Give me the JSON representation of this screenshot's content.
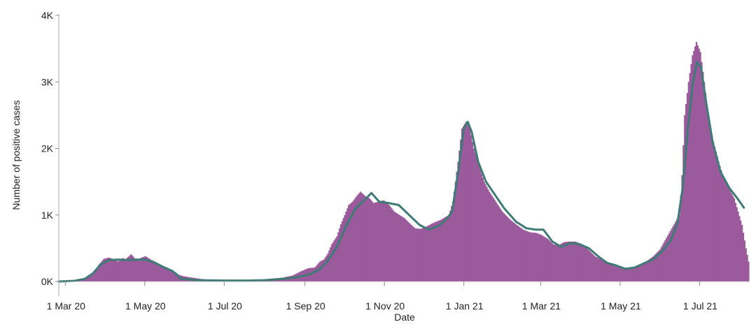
{
  "chart_data": {
    "type": "bar",
    "title": "",
    "xlabel": "Date",
    "ylabel": "Number of positive cases",
    "x_start": "2020-02-25",
    "x_end": "2021-08-09",
    "ylim": [
      0,
      4000
    ],
    "y_ticks": [
      {
        "value": 0,
        "label": "0K"
      },
      {
        "value": 1000,
        "label": "1K"
      },
      {
        "value": 2000,
        "label": "2K"
      },
      {
        "value": 3000,
        "label": "3K"
      },
      {
        "value": 4000,
        "label": "4K"
      }
    ],
    "x_ticks": [
      {
        "date": "2020-03-01",
        "label": "1 Mar 20"
      },
      {
        "date": "2020-05-01",
        "label": "1 May 20"
      },
      {
        "date": "2020-07-01",
        "label": "1 Jul 20"
      },
      {
        "date": "2020-09-01",
        "label": "1 Sep 20"
      },
      {
        "date": "2020-11-01",
        "label": "1 Nov 20"
      },
      {
        "date": "2021-01-01",
        "label": "1 Jan 21"
      },
      {
        "date": "2021-03-01",
        "label": "1 Mar 21"
      },
      {
        "date": "2021-05-01",
        "label": "1 May 21"
      },
      {
        "date": "2021-07-01",
        "label": "1 Jul 21"
      }
    ],
    "bar_color": "#9b5a9b",
    "line_color": "#3e7b76",
    "grid": false,
    "series": [
      {
        "type": "bar",
        "points": [
          [
            "2020-02-25",
            0
          ],
          [
            "2020-03-10",
            10
          ],
          [
            "2020-03-15",
            40
          ],
          [
            "2020-03-20",
            90
          ],
          [
            "2020-03-23",
            150
          ],
          [
            "2020-03-26",
            250
          ],
          [
            "2020-03-30",
            340
          ],
          [
            "2020-04-03",
            360
          ],
          [
            "2020-04-07",
            330
          ],
          [
            "2020-04-10",
            300
          ],
          [
            "2020-04-13",
            350
          ],
          [
            "2020-04-16",
            340
          ],
          [
            "2020-04-20",
            410
          ],
          [
            "2020-04-24",
            320
          ],
          [
            "2020-04-28",
            360
          ],
          [
            "2020-05-01",
            380
          ],
          [
            "2020-05-05",
            330
          ],
          [
            "2020-05-08",
            300
          ],
          [
            "2020-05-12",
            250
          ],
          [
            "2020-05-16",
            220
          ],
          [
            "2020-05-20",
            160
          ],
          [
            "2020-05-25",
            110
          ],
          [
            "2020-05-30",
            80
          ],
          [
            "2020-06-05",
            60
          ],
          [
            "2020-06-12",
            40
          ],
          [
            "2020-06-20",
            25
          ],
          [
            "2020-07-01",
            15
          ],
          [
            "2020-07-15",
            15
          ],
          [
            "2020-07-25",
            25
          ],
          [
            "2020-08-05",
            40
          ],
          [
            "2020-08-15",
            60
          ],
          [
            "2020-08-22",
            90
          ],
          [
            "2020-08-28",
            150
          ],
          [
            "2020-09-03",
            200
          ],
          [
            "2020-09-08",
            210
          ],
          [
            "2020-09-12",
            300
          ],
          [
            "2020-09-15",
            330
          ],
          [
            "2020-09-18",
            420
          ],
          [
            "2020-09-21",
            560
          ],
          [
            "2020-09-25",
            680
          ],
          [
            "2020-09-28",
            860
          ],
          [
            "2020-10-01",
            1000
          ],
          [
            "2020-10-04",
            1150
          ],
          [
            "2020-10-07",
            1200
          ],
          [
            "2020-10-10",
            1280
          ],
          [
            "2020-10-13",
            1350
          ],
          [
            "2020-10-17",
            1280
          ],
          [
            "2020-10-20",
            1250
          ],
          [
            "2020-10-23",
            1180
          ],
          [
            "2020-10-27",
            1200
          ],
          [
            "2020-10-31",
            1220
          ],
          [
            "2020-11-04",
            1150
          ],
          [
            "2020-11-08",
            1050
          ],
          [
            "2020-11-12",
            1000
          ],
          [
            "2020-11-16",
            950
          ],
          [
            "2020-11-20",
            870
          ],
          [
            "2020-11-24",
            800
          ],
          [
            "2020-11-28",
            790
          ],
          [
            "2020-12-02",
            820
          ],
          [
            "2020-12-08",
            880
          ],
          [
            "2020-12-14",
            930
          ],
          [
            "2020-12-20",
            1000
          ],
          [
            "2020-12-23",
            1200
          ],
          [
            "2020-12-27",
            1800
          ],
          [
            "2020-12-30",
            2300
          ],
          [
            "2021-01-02",
            2400
          ],
          [
            "2021-01-05",
            2300
          ],
          [
            "2021-01-08",
            2000
          ],
          [
            "2021-01-12",
            1750
          ],
          [
            "2021-01-16",
            1500
          ],
          [
            "2021-01-20",
            1350
          ],
          [
            "2021-01-25",
            1200
          ],
          [
            "2021-01-30",
            1050
          ],
          [
            "2021-02-05",
            930
          ],
          [
            "2021-02-10",
            850
          ],
          [
            "2021-02-15",
            780
          ],
          [
            "2021-02-20",
            740
          ],
          [
            "2021-02-25",
            730
          ],
          [
            "2021-03-01",
            700
          ],
          [
            "2021-03-06",
            640
          ],
          [
            "2021-03-10",
            560
          ],
          [
            "2021-03-14",
            540
          ],
          [
            "2021-03-18",
            590
          ],
          [
            "2021-03-22",
            600
          ],
          [
            "2021-03-27",
            600
          ],
          [
            "2021-04-01",
            560
          ],
          [
            "2021-04-06",
            480
          ],
          [
            "2021-04-11",
            380
          ],
          [
            "2021-04-16",
            330
          ],
          [
            "2021-04-21",
            270
          ],
          [
            "2021-04-26",
            260
          ],
          [
            "2021-05-01",
            220
          ],
          [
            "2021-05-06",
            200
          ],
          [
            "2021-05-11",
            210
          ],
          [
            "2021-05-16",
            260
          ],
          [
            "2021-05-21",
            310
          ],
          [
            "2021-05-26",
            380
          ],
          [
            "2021-05-31",
            480
          ],
          [
            "2021-06-04",
            620
          ],
          [
            "2021-06-08",
            760
          ],
          [
            "2021-06-12",
            900
          ],
          [
            "2021-06-15",
            1000
          ],
          [
            "2021-06-17",
            1600
          ],
          [
            "2021-06-19",
            2500
          ],
          [
            "2021-06-22",
            3000
          ],
          [
            "2021-06-25",
            3400
          ],
          [
            "2021-06-28",
            3600
          ],
          [
            "2021-07-01",
            3450
          ],
          [
            "2021-07-04",
            3000
          ],
          [
            "2021-07-07",
            2500
          ],
          [
            "2021-07-11",
            2100
          ],
          [
            "2021-07-15",
            1800
          ],
          [
            "2021-07-19",
            1550
          ],
          [
            "2021-07-23",
            1400
          ],
          [
            "2021-07-27",
            1250
          ],
          [
            "2021-07-30",
            1050
          ],
          [
            "2021-08-02",
            850
          ],
          [
            "2021-08-05",
            500
          ],
          [
            "2021-08-07",
            300
          ]
        ]
      },
      {
        "type": "line",
        "points": [
          [
            "2020-02-25",
            0
          ],
          [
            "2020-03-08",
            10
          ],
          [
            "2020-03-16",
            40
          ],
          [
            "2020-03-22",
            120
          ],
          [
            "2020-03-28",
            250
          ],
          [
            "2020-04-03",
            320
          ],
          [
            "2020-04-10",
            330
          ],
          [
            "2020-04-17",
            320
          ],
          [
            "2020-04-24",
            330
          ],
          [
            "2020-05-01",
            330
          ],
          [
            "2020-05-08",
            290
          ],
          [
            "2020-05-15",
            220
          ],
          [
            "2020-05-22",
            160
          ],
          [
            "2020-05-26",
            100
          ],
          [
            "2020-05-28",
            45
          ],
          [
            "2020-06-10",
            20
          ],
          [
            "2020-07-01",
            15
          ],
          [
            "2020-07-20",
            15
          ],
          [
            "2020-08-01",
            20
          ],
          [
            "2020-08-15",
            40
          ],
          [
            "2020-08-25",
            60
          ],
          [
            "2020-09-05",
            110
          ],
          [
            "2020-09-12",
            180
          ],
          [
            "2020-09-18",
            300
          ],
          [
            "2020-09-25",
            500
          ],
          [
            "2020-10-03",
            850
          ],
          [
            "2020-10-10",
            1100
          ],
          [
            "2020-10-17",
            1230
          ],
          [
            "2020-10-22",
            1330
          ],
          [
            "2020-10-28",
            1200
          ],
          [
            "2020-11-04",
            1180
          ],
          [
            "2020-11-12",
            1150
          ],
          [
            "2020-11-20",
            1000
          ],
          [
            "2020-11-28",
            850
          ],
          [
            "2020-12-05",
            780
          ],
          [
            "2020-12-12",
            830
          ],
          [
            "2020-12-18",
            920
          ],
          [
            "2020-12-23",
            1050
          ],
          [
            "2020-12-28",
            1700
          ],
          [
            "2021-01-01",
            2300
          ],
          [
            "2021-01-04",
            2400
          ],
          [
            "2021-01-07",
            2250
          ],
          [
            "2021-01-12",
            1800
          ],
          [
            "2021-01-18",
            1500
          ],
          [
            "2021-01-25",
            1300
          ],
          [
            "2021-02-01",
            1100
          ],
          [
            "2021-02-10",
            900
          ],
          [
            "2021-02-18",
            800
          ],
          [
            "2021-02-25",
            780
          ],
          [
            "2021-03-03",
            780
          ],
          [
            "2021-03-10",
            600
          ],
          [
            "2021-03-17",
            520
          ],
          [
            "2021-03-24",
            580
          ],
          [
            "2021-03-31",
            560
          ],
          [
            "2021-04-07",
            500
          ],
          [
            "2021-04-14",
            380
          ],
          [
            "2021-04-21",
            280
          ],
          [
            "2021-04-28",
            240
          ],
          [
            "2021-05-05",
            190
          ],
          [
            "2021-05-12",
            210
          ],
          [
            "2021-05-19",
            270
          ],
          [
            "2021-05-26",
            330
          ],
          [
            "2021-06-02",
            450
          ],
          [
            "2021-06-09",
            620
          ],
          [
            "2021-06-14",
            880
          ],
          [
            "2021-06-18",
            1400
          ],
          [
            "2021-06-22",
            2300
          ],
          [
            "2021-06-26",
            3000
          ],
          [
            "2021-06-29",
            3300
          ],
          [
            "2021-07-02",
            3230
          ],
          [
            "2021-07-06",
            2700
          ],
          [
            "2021-07-11",
            2100
          ],
          [
            "2021-07-17",
            1650
          ],
          [
            "2021-07-24",
            1400
          ],
          [
            "2021-07-30",
            1250
          ],
          [
            "2021-08-04",
            1110
          ]
        ]
      }
    ]
  }
}
